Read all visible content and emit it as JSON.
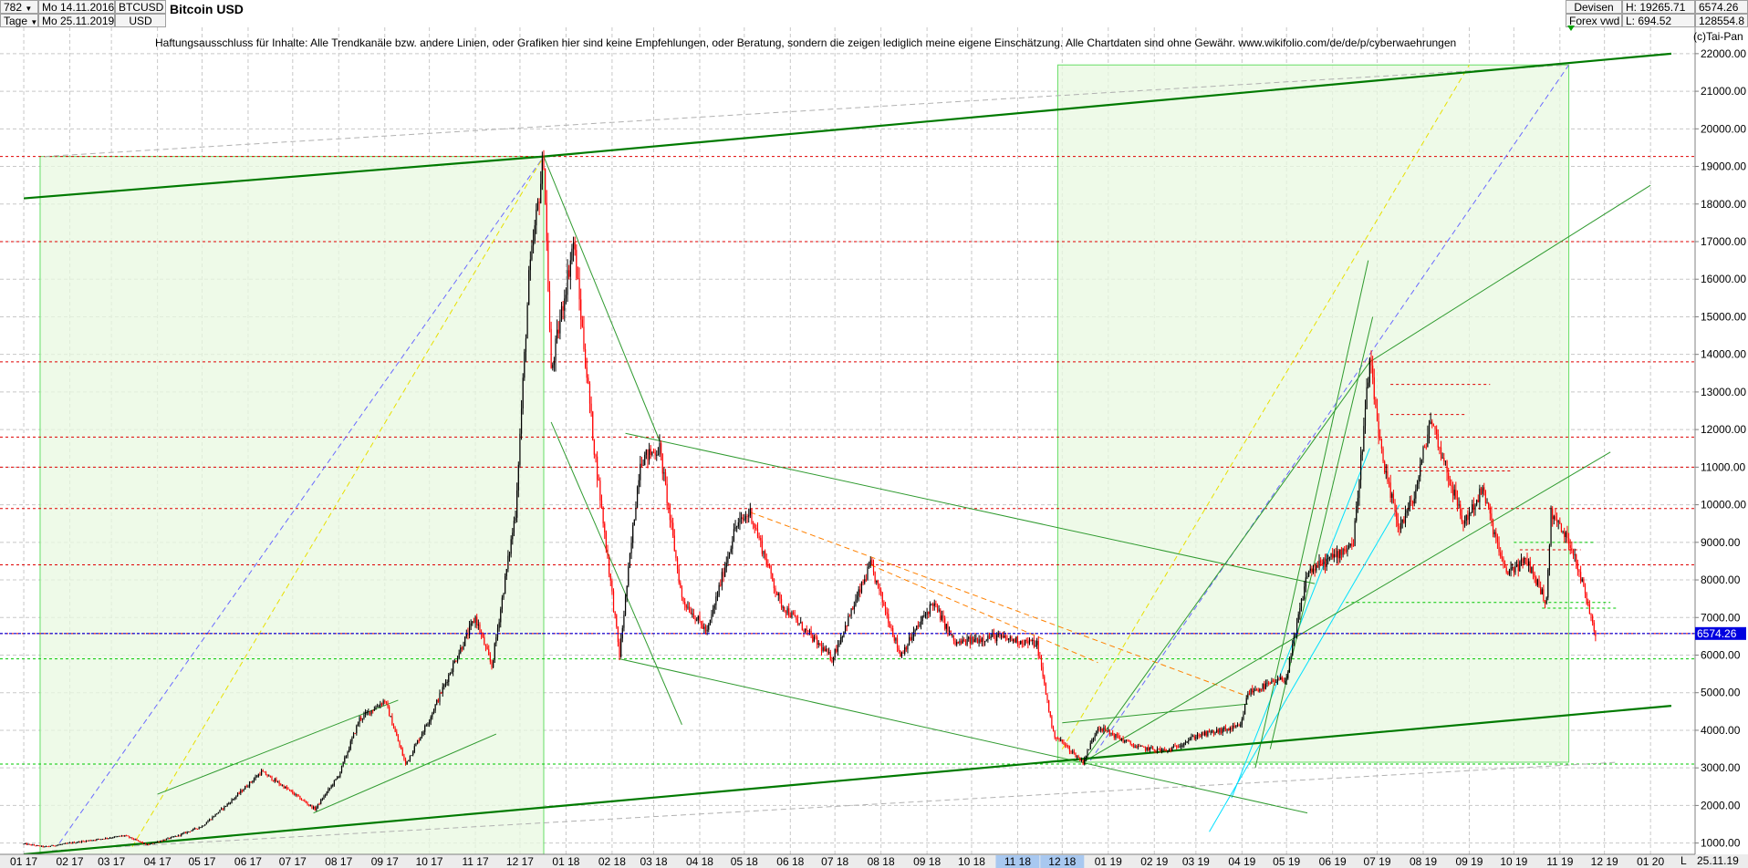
{
  "header": {
    "period_count": "782",
    "period_unit": "Tage",
    "date_from": "Mo 14.11.2016",
    "date_to": "Mo 25.11.2019",
    "symbol": "BTCUSD",
    "currency": "USD",
    "title": "Bitcoin USD",
    "source_line1": "Devisen",
    "source_line2": "Forex vwd",
    "high_label": "H: 19265.71",
    "low_label": "L: 694.52",
    "last_value": "6574.26",
    "volume_value": "128554.8",
    "copyright": "(c)Tai-Pan"
  },
  "disclaimer": "Haftungsausschluss für Inhalte: Alle Trendkanäle bzw. andere Linien, oder Grafiken hier sind keine Empfehlungen, oder Beratung, sondern die zeigen lediglich meine eigene Einschätzung. Alle Chartdaten sind ohne Gewähr.  www.wikifolio.com/de/de/p/cyberwaehrungen",
  "footer": {
    "end_date": "25.11.19",
    "scale_button": "L"
  },
  "chart_data": {
    "type": "candlestick",
    "title": "Bitcoin USD",
    "xlabel": "",
    "ylabel": "",
    "ylim": [
      700,
      22700
    ],
    "y_ticks": [
      1000,
      2000,
      3000,
      4000,
      5000,
      6000,
      7000,
      8000,
      9000,
      10000,
      11000,
      12000,
      13000,
      14000,
      15000,
      16000,
      17000,
      18000,
      19000,
      20000,
      21000,
      22000
    ],
    "y_tick_labels": [
      "1000.00",
      "2000.00",
      "3000.00",
      "4000.00",
      "5000.00",
      "6000.00",
      "7000.00",
      "8000.00",
      "9000.00",
      "10000.00",
      "11000.00",
      "12000.00",
      "13000.00",
      "14000.00",
      "15000.00",
      "16000.00",
      "17000.00",
      "18000.00",
      "19000.00",
      "20000.00",
      "21000.00",
      "22000.00"
    ],
    "x_tick_labels": [
      "01 17",
      "02 17",
      "03 17",
      "04 17",
      "05 17",
      "06 17",
      "07 17",
      "08 17",
      "09 17",
      "10 17",
      "11 17",
      "12 17",
      "01 18",
      "02 18",
      "03 18",
      "04 18",
      "05 18",
      "06 18",
      "07 18",
      "08 18",
      "09 18",
      "10 18",
      "11 18",
      "12 18",
      "01 19",
      "02 19",
      "03 19",
      "04 19",
      "05 19",
      "06 19",
      "07 19",
      "08 19",
      "09 19",
      "10 19",
      "11 19",
      "12 19",
      "01 20"
    ],
    "highlighted_x_ticks": [
      "11 18",
      "12 18"
    ],
    "grid": true,
    "current_price": 6574.26,
    "current_price_label": "6574.26",
    "colors": {
      "up": "#000000",
      "down": "#ff0000",
      "trend_major": "#007a00",
      "trend_minor": "#2f9a2f",
      "support_dashed": "#00c800",
      "resistance_dashed": "#e00000",
      "current_price": "#0000e0",
      "box_fill": "#e8f8e0",
      "box_border": "#66dd66",
      "bull_diag_blue": "#6a6aff",
      "bull_diag_yellow": "#e8e000",
      "cyan": "#00e0ff",
      "orange": "#ff8000"
    },
    "price_path": [
      [
        "2017-01-01",
        980
      ],
      [
        "2017-01-15",
        900
      ],
      [
        "2017-02-01",
        1000
      ],
      [
        "2017-02-20",
        1100
      ],
      [
        "2017-03-10",
        1200
      ],
      [
        "2017-03-25",
        950
      ],
      [
        "2017-04-15",
        1200
      ],
      [
        "2017-05-01",
        1450
      ],
      [
        "2017-05-20",
        2100
      ],
      [
        "2017-06-10",
        2900
      ],
      [
        "2017-06-25",
        2500
      ],
      [
        "2017-07-16",
        1900
      ],
      [
        "2017-08-01",
        2800
      ],
      [
        "2017-08-15",
        4300
      ],
      [
        "2017-09-01",
        4800
      ],
      [
        "2017-09-15",
        3100
      ],
      [
        "2017-10-01",
        4300
      ],
      [
        "2017-10-20",
        6000
      ],
      [
        "2017-11-01",
        7000
      ],
      [
        "2017-11-12",
        5700
      ],
      [
        "2017-11-28",
        9800
      ],
      [
        "2017-12-07",
        16000
      ],
      [
        "2017-12-17",
        19265
      ],
      [
        "2017-12-22",
        13500
      ],
      [
        "2018-01-06",
        17000
      ],
      [
        "2018-01-20",
        11500
      ],
      [
        "2018-02-06",
        6000
      ],
      [
        "2018-02-20",
        11200
      ],
      [
        "2018-03-05",
        11500
      ],
      [
        "2018-03-20",
        7500
      ],
      [
        "2018-04-06",
        6600
      ],
      [
        "2018-04-25",
        9400
      ],
      [
        "2018-05-05",
        9800
      ],
      [
        "2018-05-25",
        7400
      ],
      [
        "2018-06-10",
        6700
      ],
      [
        "2018-06-29",
        5900
      ],
      [
        "2018-07-25",
        8400
      ],
      [
        "2018-08-14",
        6000
      ],
      [
        "2018-09-05",
        7400
      ],
      [
        "2018-09-20",
        6300
      ],
      [
        "2018-10-15",
        6500
      ],
      [
        "2018-11-14",
        6300
      ],
      [
        "2018-11-25",
        3900
      ],
      [
        "2018-12-15",
        3150
      ],
      [
        "2018-12-25",
        4100
      ],
      [
        "2019-01-20",
        3550
      ],
      [
        "2019-02-10",
        3450
      ],
      [
        "2019-03-01",
        3850
      ],
      [
        "2019-03-31",
        4100
      ],
      [
        "2019-04-05",
        5000
      ],
      [
        "2019-05-01",
        5400
      ],
      [
        "2019-05-15",
        8200
      ],
      [
        "2019-06-01",
        8600
      ],
      [
        "2019-06-15",
        9000
      ],
      [
        "2019-06-26",
        13800
      ],
      [
        "2019-07-05",
        11000
      ],
      [
        "2019-07-16",
        9400
      ],
      [
        "2019-07-26",
        10200
      ],
      [
        "2019-08-06",
        12300
      ],
      [
        "2019-08-28",
        9500
      ],
      [
        "2019-09-10",
        10400
      ],
      [
        "2019-09-25",
        8200
      ],
      [
        "2019-10-10",
        8500
      ],
      [
        "2019-10-23",
        7400
      ],
      [
        "2019-10-26",
        9800
      ],
      [
        "2019-11-10",
        8800
      ],
      [
        "2019-11-25",
        6574
      ]
    ],
    "boxes": [
      {
        "x0": "2017-01-12",
        "x1": "2017-12-17",
        "y0": 700,
        "y1": 19265
      },
      {
        "x0": "2018-11-28",
        "x1": "2019-11-07",
        "y0": 3150,
        "y1": 21700
      }
    ],
    "trendlines_major": [
      {
        "x0": "2017-01-01",
        "y0": 18150,
        "x1": "2017-12-17",
        "y1": 19265
      },
      {
        "x0": "2017-12-17",
        "y0": 19265,
        "x1": "2020-01-15",
        "y1": 22000
      },
      {
        "x0": "2017-01-01",
        "y0": 700,
        "x1": "2020-01-15",
        "y1": 4650
      }
    ],
    "trendlines_minor": [
      {
        "x0": "2017-12-17",
        "y0": 19265,
        "x1": "2018-03-05",
        "y1": 11700
      },
      {
        "x0": "2017-12-22",
        "y0": 12200,
        "x1": "2018-03-20",
        "y1": 4150
      },
      {
        "x0": "2018-02-10",
        "y0": 11900,
        "x1": "2019-05-20",
        "y1": 7900
      },
      {
        "x0": "2018-02-06",
        "y0": 5900,
        "x1": "2019-05-15",
        "y1": 1800
      },
      {
        "x0": "2018-12-15",
        "y0": 3150,
        "x1": "2019-06-26",
        "y1": 13800
      },
      {
        "x0": "2019-06-26",
        "y0": 13800,
        "x1": "2020-01-01",
        "y1": 18500
      },
      {
        "x0": "2018-12-15",
        "y0": 3150,
        "x1": "2019-12-05",
        "y1": 11400
      },
      {
        "x0": "2017-04-01",
        "y0": 2300,
        "x1": "2017-09-10",
        "y1": 4800
      },
      {
        "x0": "2017-07-15",
        "y0": 1800,
        "x1": "2017-11-15",
        "y1": 3900
      },
      {
        "x0": "2018-12-01",
        "y0": 4200,
        "x1": "2019-04-05",
        "y1": 4700
      },
      {
        "x0": "2019-04-10",
        "y0": 3000,
        "x1": "2019-06-25",
        "y1": 16500
      },
      {
        "x0": "2019-04-20",
        "y0": 3500,
        "x1": "2019-06-28",
        "y1": 15000
      }
    ],
    "hlines_red": [
      19265,
      17000,
      13800,
      11800,
      11000,
      9900,
      8400,
      6574
    ],
    "hlines_green": [
      5900,
      3100
    ],
    "hlines_red_short": [
      {
        "x0": "2019-07-10",
        "x1": "2019-09-15",
        "y": 13200
      },
      {
        "x0": "2019-07-10",
        "x1": "2019-08-30",
        "y": 12400
      },
      {
        "x0": "2019-07-15",
        "x1": "2019-09-30",
        "y": 10900
      },
      {
        "x0": "2019-10-05",
        "x1": "2019-11-15",
        "y": 8800
      }
    ],
    "hlines_green_short": [
      {
        "x0": "2019-06-10",
        "x1": "2019-12-05",
        "y": 7400
      },
      {
        "x0": "2019-10-20",
        "x1": "2019-12-10",
        "y": 7250
      },
      {
        "x0": "2019-10-01",
        "x1": "2019-11-25",
        "y": 9000
      }
    ],
    "diagonals_dashed": [
      {
        "color": "blue",
        "x0": "2017-01-25",
        "y0": 1000,
        "x1": "2017-12-17",
        "y1": 19265
      },
      {
        "color": "yellow",
        "x0": "2017-03-15",
        "y0": 900,
        "x1": "2017-12-17",
        "y1": 19265
      },
      {
        "color": "blue",
        "x0": "2018-12-20",
        "y0": 3200,
        "x1": "2019-11-07",
        "y1": 21700
      },
      {
        "color": "yellow",
        "x0": "2018-12-01",
        "y0": 3500,
        "x1": "2019-09-01",
        "y1": 21700
      },
      {
        "color": "gray",
        "x0": "2017-01-15",
        "y0": 19265,
        "x1": "2019-11-07",
        "y1": 21700
      },
      {
        "color": "gray",
        "x0": "2017-01-20",
        "y0": 800,
        "x1": "2019-12-10",
        "y1": 3150
      },
      {
        "color": "orange",
        "x0": "2018-05-05",
        "y0": 9800,
        "x1": "2019-04-05",
        "y1": 4900
      },
      {
        "color": "orange",
        "x0": "2018-07-25",
        "y0": 8400,
        "x1": "2018-12-25",
        "y1": 5800
      },
      {
        "color": "cyan",
        "x0": "2019-03-10",
        "y0": 1300,
        "x1": "2019-07-16",
        "y1": 10000
      },
      {
        "color": "cyan",
        "x0": "2019-03-25",
        "y0": 2200,
        "x1": "2019-06-26",
        "y1": 11500
      }
    ]
  }
}
